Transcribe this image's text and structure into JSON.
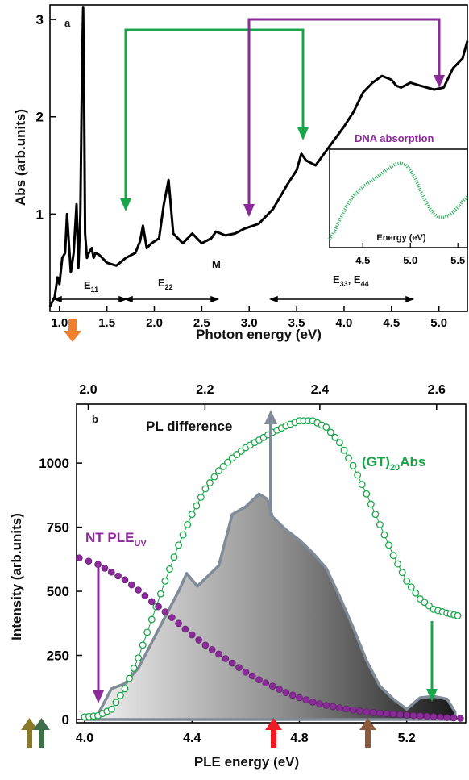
{
  "panel_a": {
    "panel_label": "a",
    "ylabel": "Abs (arb.units)",
    "xlabel": "Photon energy (eV)",
    "yticks": [
      "1",
      "2",
      "3"
    ],
    "xticks": [
      "1.0",
      "1.5",
      "2.0",
      "2.5",
      "3.0",
      "3.5",
      "4.0",
      "4.5",
      "5.0"
    ],
    "annotations": {
      "e11": "E",
      "e11_sub": "11",
      "e22": "E",
      "e22_sub": "22",
      "m": "M",
      "e33": "E",
      "e33_sub": "33",
      "e33_sep": ", E",
      "e44_sub": "44"
    },
    "inset": {
      "title": "DNA absorption",
      "xlabel": "Energy (eV)",
      "xticks": [
        "4.5",
        "5.0",
        "5.5"
      ]
    }
  },
  "panel_b": {
    "panel_label": "b",
    "ylabel": "Intensity (arb.units)",
    "xlabel": "PLE energy (eV)",
    "yticks": [
      "0",
      "250",
      "500",
      "750",
      "1000"
    ],
    "xticks": [
      "4.0",
      "4.4",
      "4.8",
      "5.2"
    ],
    "top_xticks": [
      "2.0",
      "2.2",
      "2.4",
      "2.6"
    ],
    "labels": {
      "pl_difference": "PL difference",
      "gt_abs_a": "(GT)",
      "gt_abs_sub": "20",
      "gt_abs_b": "Abs",
      "nt_ple": "NT PLE",
      "nt_ple_sub": "UV"
    }
  },
  "colors": {
    "green": "#1aa54a",
    "purple": "#8b2a99",
    "orange": "#f08030",
    "red": "#ee1c25",
    "brown": "#8b5a3c",
    "olive": "#8a7a28",
    "darkgreen": "#3e6e4a",
    "gray": "#7f8c98"
  },
  "chart_data": [
    {
      "type": "line",
      "title": "",
      "xlabel": "Photon energy (eV)",
      "ylabel": "Abs (arb.units)",
      "xlim": [
        0.9,
        5.3
      ],
      "ylim": [
        0.0,
        3.15
      ],
      "series": [
        {
          "x": [
            0.9,
            0.95,
            0.98,
            1.0,
            1.03,
            1.06,
            1.08,
            1.1,
            1.12,
            1.15,
            1.18,
            1.2,
            1.22,
            1.24,
            1.25,
            1.26,
            1.27,
            1.29,
            1.31,
            1.34,
            1.36,
            1.38,
            1.42,
            1.5,
            1.6,
            1.7,
            1.8,
            1.85,
            1.88,
            1.92,
            1.97,
            2.05,
            2.1,
            2.15,
            2.2,
            2.3,
            2.4,
            2.5,
            2.6,
            2.65,
            2.75,
            2.85,
            2.95,
            3.1,
            3.25,
            3.4,
            3.5,
            3.55,
            3.6,
            3.7,
            3.85,
            4.0,
            4.1,
            4.2,
            4.3,
            4.4,
            4.5,
            4.55,
            4.6,
            4.7,
            4.8,
            4.95,
            5.05,
            5.15,
            5.25,
            5.3
          ],
          "values": [
            0.05,
            0.15,
            0.35,
            0.28,
            0.55,
            0.6,
            1.0,
            0.7,
            0.4,
            0.6,
            1.1,
            0.45,
            1.0,
            2.6,
            3.12,
            2.2,
            0.8,
            0.55,
            0.6,
            0.65,
            0.55,
            0.6,
            0.58,
            0.5,
            0.47,
            0.55,
            0.6,
            0.72,
            0.88,
            0.65,
            0.7,
            0.75,
            1.1,
            1.35,
            0.8,
            0.7,
            0.8,
            0.7,
            0.75,
            0.82,
            0.78,
            0.8,
            0.85,
            0.9,
            1.05,
            1.3,
            1.45,
            1.62,
            1.55,
            1.5,
            1.7,
            1.9,
            2.05,
            2.25,
            2.35,
            2.42,
            2.38,
            2.32,
            2.3,
            2.35,
            2.32,
            2.28,
            2.3,
            2.5,
            2.6,
            2.78
          ]
        }
      ],
      "inset": {
        "title": "DNA absorption",
        "xlabel": "Energy (eV)",
        "xlim": [
          4.15,
          5.6
        ],
        "x": [
          4.15,
          4.2,
          4.25,
          4.3,
          4.35,
          4.4,
          4.45,
          4.5,
          4.55,
          4.6,
          4.65,
          4.7,
          4.75,
          4.8,
          4.85,
          4.9,
          4.95,
          5.0,
          5.05,
          5.1,
          5.15,
          5.2,
          5.25,
          5.3,
          5.35,
          5.4,
          5.45,
          5.5,
          5.55,
          5.6
        ],
        "values": [
          0.05,
          0.14,
          0.26,
          0.38,
          0.48,
          0.56,
          0.62,
          0.67,
          0.71,
          0.75,
          0.79,
          0.83,
          0.87,
          0.91,
          0.94,
          0.95,
          0.93,
          0.87,
          0.77,
          0.65,
          0.52,
          0.42,
          0.35,
          0.31,
          0.31,
          0.33,
          0.37,
          0.43,
          0.5,
          0.55
        ]
      }
    },
    {
      "type": "line",
      "title": "",
      "xlabel": "PLE energy (eV)",
      "ylabel": "Intensity (arb.units)",
      "xlim": [
        3.97,
        5.42
      ],
      "ylim": [
        0,
        1230
      ],
      "top_axis_ticks": [
        2.0,
        2.2,
        2.4,
        2.6
      ],
      "series": [
        {
          "name": "(GT)20Abs",
          "x": [
            4.0,
            4.05,
            4.1,
            4.15,
            4.2,
            4.25,
            4.3,
            4.35,
            4.4,
            4.45,
            4.5,
            4.55,
            4.6,
            4.65,
            4.7,
            4.75,
            4.8,
            4.85,
            4.9,
            4.95,
            5.0,
            5.05,
            5.1,
            5.15,
            5.2,
            5.25,
            5.3,
            5.35,
            5.39
          ],
          "values": [
            10,
            15,
            40,
            120,
            240,
            390,
            540,
            680,
            800,
            900,
            970,
            1020,
            1060,
            1090,
            1120,
            1145,
            1165,
            1165,
            1140,
            1080,
            990,
            880,
            760,
            640,
            540,
            470,
            430,
            415,
            405
          ]
        },
        {
          "name": "NT PLEUV",
          "x": [
            3.98,
            4.05,
            4.1,
            4.15,
            4.2,
            4.25,
            4.3,
            4.35,
            4.4,
            4.45,
            4.5,
            4.55,
            4.6,
            4.65,
            4.7,
            4.75,
            4.8,
            4.85,
            4.9,
            4.95,
            5.0,
            5.05,
            5.1,
            5.15,
            5.2,
            5.25,
            5.3,
            5.35,
            5.4
          ],
          "values": [
            630,
            605,
            575,
            545,
            505,
            460,
            420,
            375,
            330,
            290,
            255,
            220,
            185,
            155,
            130,
            105,
            85,
            68,
            55,
            45,
            37,
            30,
            25,
            21,
            17,
            14,
            11,
            8,
            5
          ]
        },
        {
          "name": "PL difference",
          "x": [
            4.0,
            4.05,
            4.1,
            4.15,
            4.2,
            4.25,
            4.3,
            4.35,
            4.38,
            4.42,
            4.46,
            4.5,
            4.55,
            4.6,
            4.65,
            4.68,
            4.7,
            4.75,
            4.8,
            4.85,
            4.9,
            4.95,
            5.0,
            5.05,
            5.1,
            5.15,
            5.2,
            5.25,
            5.3,
            5.35,
            5.38
          ],
          "values": [
            10,
            20,
            120,
            140,
            200,
            300,
            400,
            500,
            570,
            520,
            560,
            600,
            800,
            830,
            880,
            860,
            790,
            740,
            700,
            650,
            590,
            480,
            360,
            230,
            130,
            80,
            40,
            85,
            90,
            80,
            30
          ]
        }
      ]
    }
  ]
}
